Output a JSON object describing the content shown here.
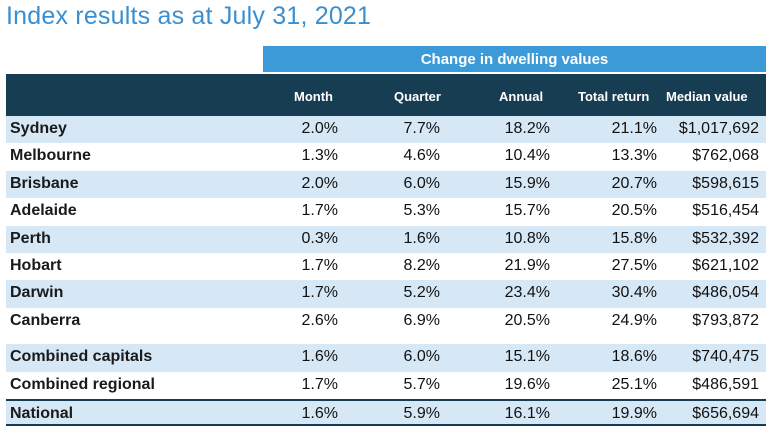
{
  "title": "Index results as at July 31, 2021",
  "band_label": "Change in dwelling values",
  "columns": [
    "Month",
    "Quarter",
    "Annual",
    "Total return",
    "Median value"
  ],
  "rows": [
    {
      "name": "Sydney",
      "month": "2.0%",
      "quarter": "7.7%",
      "annual": "18.2%",
      "total": "21.1%",
      "median": "$1,017,692",
      "shade": true
    },
    {
      "name": "Melbourne",
      "month": "1.3%",
      "quarter": "4.6%",
      "annual": "10.4%",
      "total": "13.3%",
      "median": "$762,068",
      "shade": false
    },
    {
      "name": "Brisbane",
      "month": "2.0%",
      "quarter": "6.0%",
      "annual": "15.9%",
      "total": "20.7%",
      "median": "$598,615",
      "shade": true
    },
    {
      "name": "Adelaide",
      "month": "1.7%",
      "quarter": "5.3%",
      "annual": "15.7%",
      "total": "20.5%",
      "median": "$516,454",
      "shade": false
    },
    {
      "name": "Perth",
      "month": "0.3%",
      "quarter": "1.6%",
      "annual": "10.8%",
      "total": "15.8%",
      "median": "$532,392",
      "shade": true
    },
    {
      "name": "Hobart",
      "month": "1.7%",
      "quarter": "8.2%",
      "annual": "21.9%",
      "total": "27.5%",
      "median": "$621,102",
      "shade": false
    },
    {
      "name": "Darwin",
      "month": "1.7%",
      "quarter": "5.2%",
      "annual": "23.4%",
      "total": "30.4%",
      "median": "$486,054",
      "shade": true
    },
    {
      "name": "Canberra",
      "month": "2.6%",
      "quarter": "6.9%",
      "annual": "20.5%",
      "total": "24.9%",
      "median": "$793,872",
      "shade": false
    },
    {
      "name": "Combined capitals",
      "month": "1.6%",
      "quarter": "6.0%",
      "annual": "15.1%",
      "total": "18.6%",
      "median": "$740,475",
      "shade": true
    },
    {
      "name": "Combined regional",
      "month": "1.7%",
      "quarter": "5.7%",
      "annual": "19.6%",
      "total": "25.1%",
      "median": "$486,591",
      "shade": false
    },
    {
      "name": "National",
      "month": "1.6%",
      "quarter": "5.9%",
      "annual": "16.1%",
      "total": "19.9%",
      "median": "$656,694",
      "shade": true
    }
  ],
  "colors": {
    "title": "#3a8fd0",
    "band": "#3d9ad8",
    "header": "#163d52",
    "shade": "#d6e7f6"
  }
}
